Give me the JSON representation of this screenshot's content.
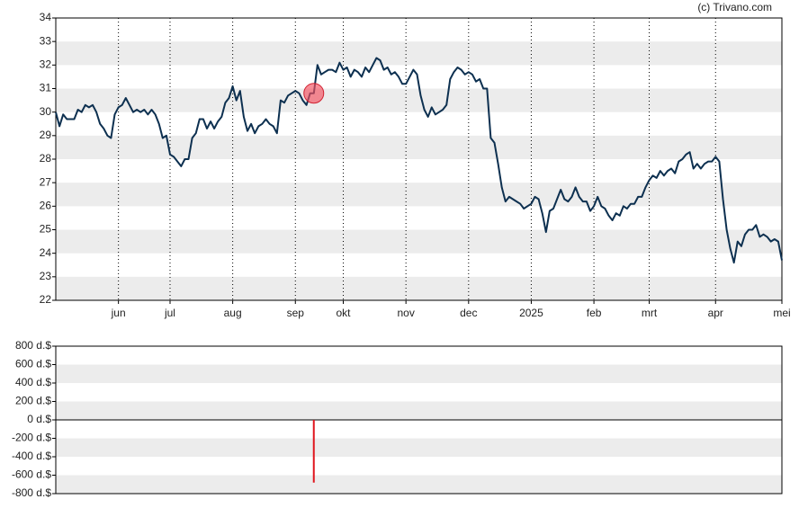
{
  "credit": "(c) Trivano.com",
  "chart_data": [
    {
      "type": "line",
      "color": "#0d3050",
      "stripes": true,
      "ylim": [
        22,
        34
      ],
      "yticks": [
        22,
        23,
        24,
        25,
        26,
        27,
        28,
        29,
        30,
        31,
        32,
        33,
        34
      ],
      "categories": [
        null,
        null,
        null,
        null,
        null,
        null,
        null,
        null,
        null,
        null,
        null,
        null,
        null,
        null,
        null,
        null,
        null,
        "jun",
        null,
        null,
        null,
        null,
        null,
        null,
        null,
        null,
        null,
        null,
        null,
        null,
        null,
        "jul",
        null,
        null,
        null,
        null,
        null,
        null,
        null,
        null,
        null,
        null,
        null,
        null,
        null,
        null,
        null,
        null,
        "aug",
        null,
        null,
        null,
        null,
        null,
        null,
        null,
        null,
        null,
        null,
        null,
        null,
        null,
        null,
        null,
        null,
        "sep",
        null,
        null,
        null,
        null,
        null,
        null,
        null,
        null,
        null,
        null,
        null,
        null,
        "okt",
        null,
        null,
        null,
        null,
        null,
        null,
        null,
        null,
        null,
        null,
        null,
        null,
        null,
        null,
        null,
        null,
        "nov",
        null,
        null,
        null,
        null,
        null,
        null,
        null,
        null,
        null,
        null,
        null,
        null,
        null,
        null,
        null,
        null,
        "dec",
        null,
        null,
        null,
        null,
        null,
        null,
        null,
        null,
        null,
        null,
        null,
        null,
        null,
        null,
        null,
        null,
        "2025",
        null,
        null,
        null,
        null,
        null,
        null,
        null,
        null,
        null,
        null,
        null,
        null,
        null,
        null,
        null,
        null,
        "feb",
        null,
        null,
        null,
        null,
        null,
        null,
        null,
        null,
        null,
        null,
        null,
        null,
        null,
        null,
        "mrt",
        null,
        null,
        null,
        null,
        null,
        null,
        null,
        null,
        null,
        null,
        null,
        null,
        null,
        null,
        null,
        null,
        null,
        "apr",
        null,
        null,
        null,
        null,
        null,
        null,
        null,
        null,
        null,
        null,
        null,
        null,
        null,
        null,
        null,
        null,
        null,
        "mei"
      ],
      "values": [
        30.0,
        29.4,
        29.9,
        29.7,
        29.7,
        29.7,
        30.1,
        30.0,
        30.3,
        30.2,
        30.3,
        30.0,
        29.5,
        29.3,
        29.0,
        28.9,
        29.9,
        30.2,
        30.3,
        30.6,
        30.3,
        30.0,
        30.1,
        30.0,
        30.1,
        29.9,
        30.1,
        29.9,
        29.5,
        28.9,
        29.0,
        28.2,
        28.1,
        27.9,
        27.7,
        28.0,
        28.0,
        28.9,
        29.1,
        29.7,
        29.7,
        29.3,
        29.6,
        29.3,
        29.6,
        29.8,
        30.4,
        30.6,
        31.1,
        30.5,
        30.9,
        29.8,
        29.2,
        29.5,
        29.1,
        29.4,
        29.5,
        29.7,
        29.5,
        29.4,
        29.1,
        30.5,
        30.4,
        30.7,
        30.8,
        30.9,
        30.8,
        30.5,
        30.3,
        30.8,
        30.8,
        32.0,
        31.6,
        31.7,
        31.8,
        31.8,
        31.7,
        32.1,
        31.8,
        31.9,
        31.5,
        31.8,
        31.7,
        31.5,
        31.9,
        31.7,
        32.0,
        32.3,
        32.2,
        31.8,
        31.9,
        31.6,
        31.7,
        31.5,
        31.2,
        31.2,
        31.5,
        31.8,
        31.6,
        30.7,
        30.1,
        29.8,
        30.2,
        29.9,
        30.0,
        30.1,
        30.3,
        31.4,
        31.7,
        31.9,
        31.8,
        31.6,
        31.7,
        31.6,
        31.3,
        31.4,
        31.0,
        31.0,
        28.9,
        28.7,
        27.8,
        26.8,
        26.2,
        26.4,
        26.3,
        26.2,
        26.1,
        25.9,
        26.0,
        26.1,
        26.4,
        26.3,
        25.7,
        24.9,
        25.8,
        25.9,
        26.3,
        26.7,
        26.3,
        26.2,
        26.4,
        26.8,
        26.4,
        26.2,
        26.2,
        25.8,
        26.0,
        26.4,
        26.0,
        25.9,
        25.6,
        25.4,
        25.7,
        25.6,
        26.0,
        25.9,
        26.1,
        26.1,
        26.4,
        26.4,
        26.8,
        27.1,
        27.3,
        27.2,
        27.5,
        27.3,
        27.5,
        27.6,
        27.4,
        27.9,
        28.0,
        28.2,
        28.3,
        27.6,
        27.8,
        27.6,
        27.8,
        27.9,
        27.9,
        28.1,
        27.9,
        26.3,
        25.0,
        24.2,
        23.6,
        24.5,
        24.3,
        24.8,
        25.0,
        25.0,
        25.2,
        24.7,
        24.8,
        24.7,
        24.5,
        24.6,
        24.5,
        23.7
      ]
    },
    {
      "type": "bar",
      "color": "#e0161e",
      "stripes": true,
      "ylim": [
        -800,
        800
      ],
      "yticks": [
        {
          "value": -800,
          "label": "-800 d.$"
        },
        {
          "value": -600,
          "label": "-600 d.$"
        },
        {
          "value": -400,
          "label": "-400 d.$"
        },
        {
          "value": -200,
          "label": "-200 d.$"
        },
        {
          "value": 0,
          "label": "0 d.$"
        },
        {
          "value": 200,
          "label": "200 d.$"
        },
        {
          "value": 400,
          "label": "400 d.$"
        },
        {
          "value": 600,
          "label": "600 d.$"
        },
        {
          "value": 800,
          "label": "800 d.$"
        }
      ],
      "xlim": [
        0,
        197
      ],
      "x": [
        70
      ],
      "values": [
        -680
      ]
    }
  ]
}
